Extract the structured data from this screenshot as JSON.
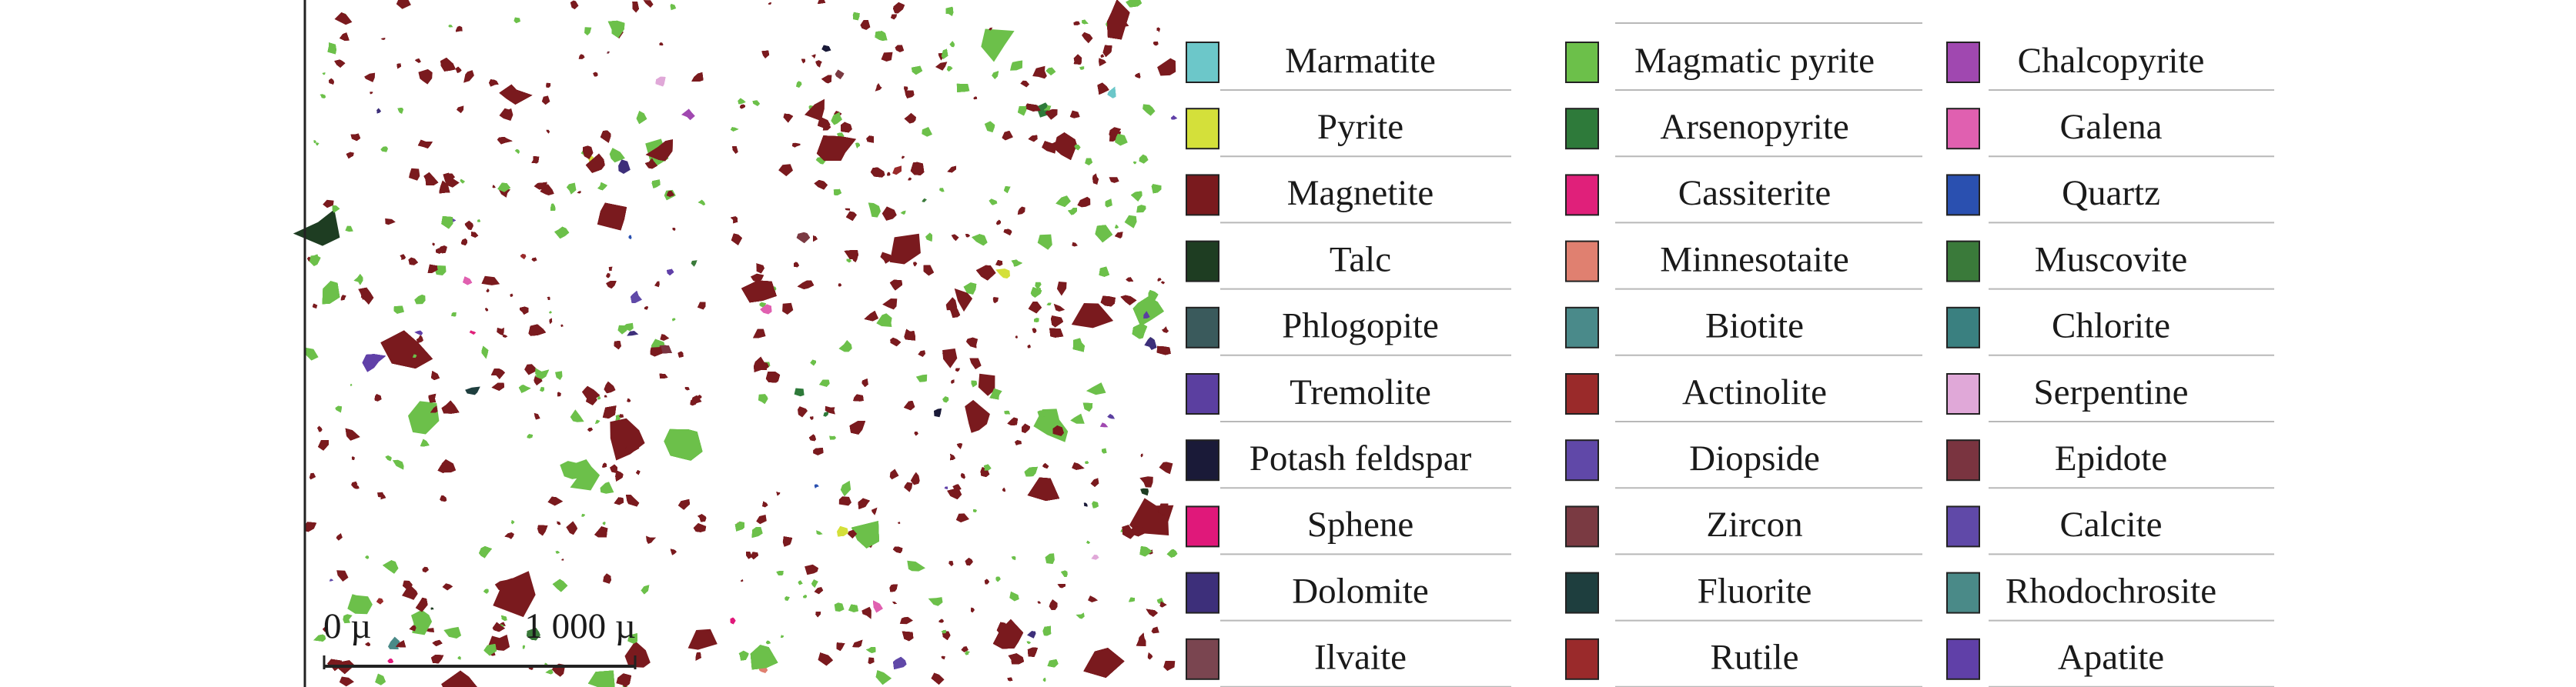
{
  "legend": [
    [
      {
        "label": "Marmatite",
        "color": "#6cc7c9"
      },
      {
        "label": "Pyrite",
        "color": "#d4e03a"
      },
      {
        "label": "Magnetite",
        "color": "#7a1a1e"
      },
      {
        "label": "Talc",
        "color": "#1e3d22"
      },
      {
        "label": "Phlogopite",
        "color": "#3a5a5c"
      },
      {
        "label": "Tremolite",
        "color": "#5b3fa0"
      },
      {
        "label": "Potash feldspar",
        "color": "#1a1a38"
      },
      {
        "label": "Sphene",
        "color": "#e0187a"
      },
      {
        "label": "Dolomite",
        "color": "#3d2f7a"
      },
      {
        "label": "Ilvaite",
        "color": "#7a4550"
      }
    ],
    [
      {
        "label": "Magmatic pyrite",
        "color": "#6cc04a"
      },
      {
        "label": "Arsenopyrite",
        "color": "#2e7a3a"
      },
      {
        "label": "Cassiterite",
        "color": "#e0207a"
      },
      {
        "label": "Minnesotaite",
        "color": "#e08070"
      },
      {
        "label": "Biotite",
        "color": "#4a8a8a"
      },
      {
        "label": "Actinolite",
        "color": "#9a2a2a"
      },
      {
        "label": "Diopside",
        "color": "#6048a8"
      },
      {
        "label": "Zircon",
        "color": "#7a3a42"
      },
      {
        "label": "Fluorite",
        "color": "#1e3e3e"
      },
      {
        "label": "Rutile",
        "color": "#9a2a2b"
      }
    ],
    [
      {
        "label": "Chalcopyrite",
        "color": "#a048b0"
      },
      {
        "label": "Galena",
        "color": "#e060b0"
      },
      {
        "label": "Quartz",
        "color": "#2a50b0"
      },
      {
        "label": "Muscovite",
        "color": "#3a7a3a"
      },
      {
        "label": "Chlorite",
        "color": "#3a8080"
      },
      {
        "label": "Serpentine",
        "color": "#e0a8d8"
      },
      {
        "label": "Epidote",
        "color": "#7a3440"
      },
      {
        "label": "Calcite",
        "color": "#6049a8"
      },
      {
        "label": "Rhodochrosite",
        "color": "#4a8a88"
      },
      {
        "label": "Apatite",
        "color": "#6040a8"
      }
    ]
  ],
  "scale_bar": {
    "start": "0 µ",
    "end": "1 000 µ"
  }
}
